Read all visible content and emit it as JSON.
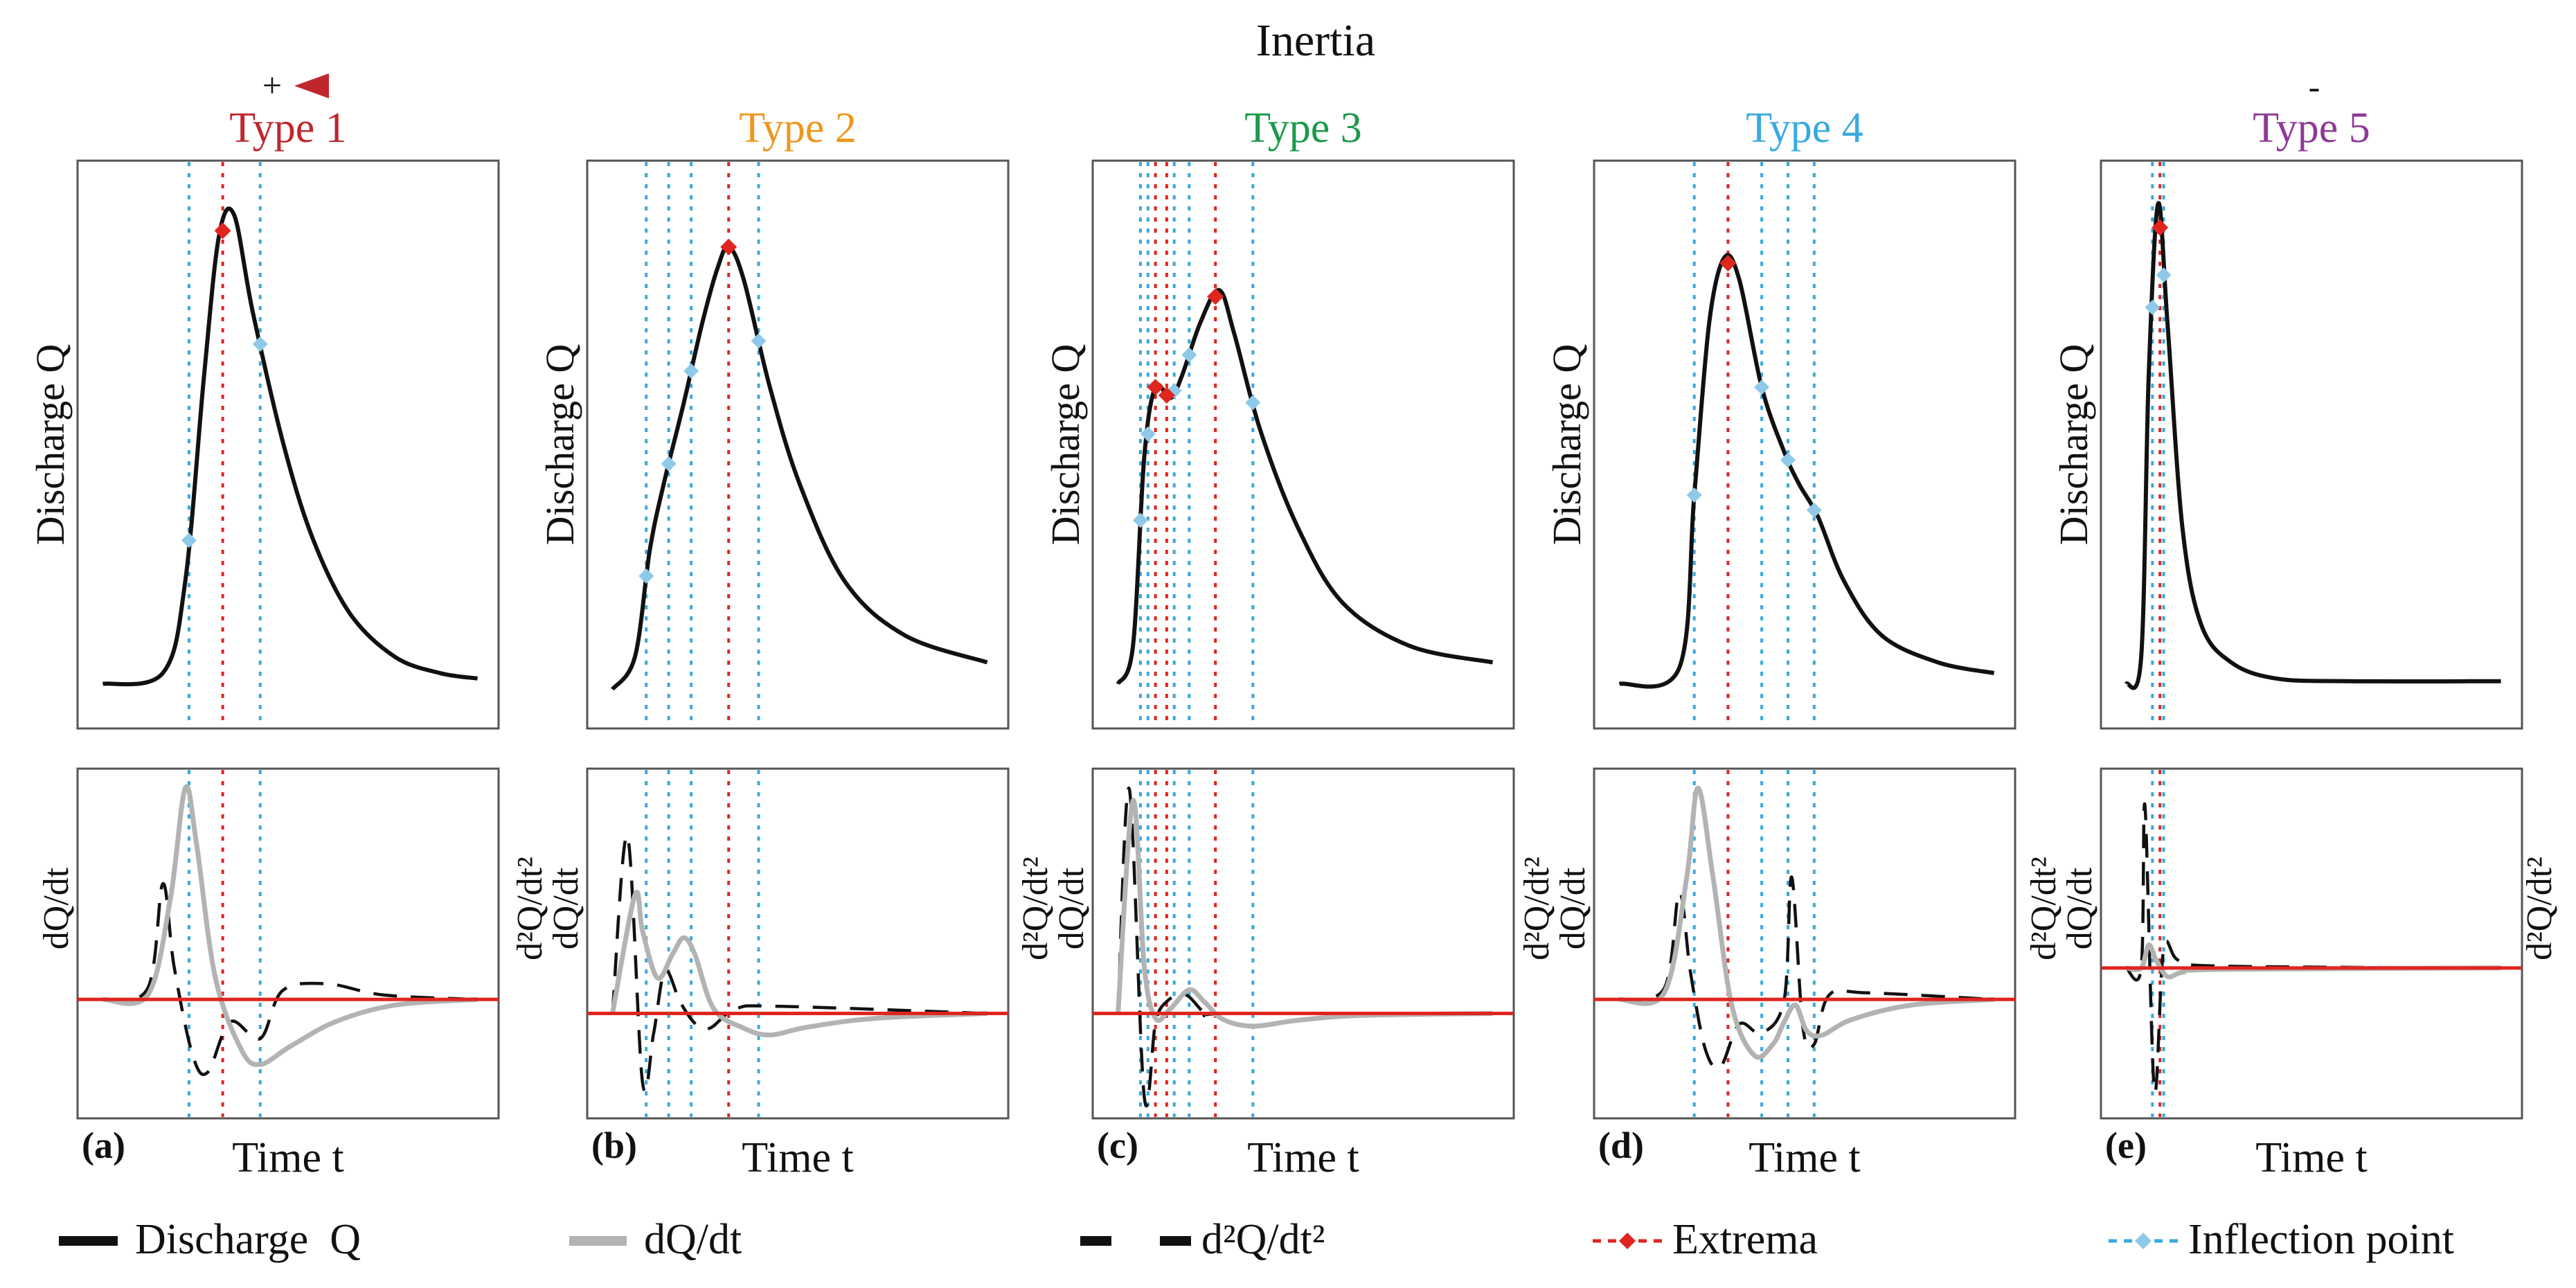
{
  "header": {
    "title": "Inertia",
    "plus_label": "+",
    "minus_label": "-"
  },
  "chart_data": {
    "type": "line",
    "x_label": "Time t",
    "legend": [
      {
        "name": "Discharge  Q",
        "style": "solid-black"
      },
      {
        "name": "dQ/dt",
        "style": "solid-gray"
      },
      {
        "name": "d²Q/dt²",
        "style": "dashed-black"
      },
      {
        "name": "Extrema",
        "style": "red-dotted-diamond"
      },
      {
        "name": "Inflection point",
        "style": "blue-dotted-diamond"
      }
    ],
    "colors": {
      "discharge": "#111111",
      "first_derivative": "#b3b3b3",
      "second_derivative": "#111111",
      "extrema": "#e0251f",
      "inflection": "#3aa9e0",
      "zero_line": "#e0251f",
      "frame": "#555555"
    },
    "panels": [
      {
        "label": "(a)",
        "title": "Type 1",
        "title_color": "#c0272d",
        "top_ylabel": "Discharge Q",
        "bottom_ylabel_left": "dQ/dt",
        "bottom_ylabel_right": "",
        "discharge_points": [
          [
            0,
            0.03
          ],
          [
            0.16,
            0.05
          ],
          [
            0.22,
            0.22
          ],
          [
            0.27,
            0.6
          ],
          [
            0.31,
            0.86
          ],
          [
            0.35,
            0.9
          ],
          [
            0.4,
            0.72
          ],
          [
            0.48,
            0.48
          ],
          [
            0.56,
            0.3
          ],
          [
            0.66,
            0.16
          ],
          [
            0.78,
            0.08
          ],
          [
            0.9,
            0.05
          ],
          [
            1,
            0.04
          ]
        ],
        "dqdt_points": [
          [
            0,
            0.0
          ],
          [
            0.12,
            0.02
          ],
          [
            0.18,
            0.45
          ],
          [
            0.22,
            0.95
          ],
          [
            0.25,
            0.7
          ],
          [
            0.3,
            0.1
          ],
          [
            0.37,
            -0.45
          ],
          [
            0.42,
            -0.58
          ],
          [
            0.5,
            -0.42
          ],
          [
            0.62,
            -0.2
          ],
          [
            0.78,
            -0.05
          ],
          [
            1,
            0
          ]
        ],
        "d2_points": [
          [
            0,
            0
          ],
          [
            0.12,
            0.05
          ],
          [
            0.16,
            0.52
          ],
          [
            0.19,
            0.15
          ],
          [
            0.24,
            -0.5
          ],
          [
            0.28,
            -0.65
          ],
          [
            0.34,
            -0.2
          ],
          [
            0.42,
            -0.35
          ],
          [
            0.48,
            0.04
          ],
          [
            0.6,
            0.07
          ],
          [
            0.75,
            0.02
          ],
          [
            1,
            0
          ]
        ],
        "extrema_x": [
          0.32
        ],
        "inflection_x": [
          0.23,
          0.42
        ],
        "bottom_zero_frac": 0.66
      },
      {
        "label": "(b)",
        "title": "Type 2",
        "title_color": "#f0961e",
        "top_ylabel": "Discharge Q",
        "bottom_ylabel_left": "d²Q/dt²",
        "bottom_ylabel_right": "",
        "discharge_points": [
          [
            0,
            0.02
          ],
          [
            0.06,
            0.08
          ],
          [
            0.1,
            0.28
          ],
          [
            0.14,
            0.41
          ],
          [
            0.19,
            0.55
          ],
          [
            0.24,
            0.7
          ],
          [
            0.28,
            0.8
          ],
          [
            0.31,
            0.84
          ],
          [
            0.35,
            0.78
          ],
          [
            0.42,
            0.58
          ],
          [
            0.5,
            0.4
          ],
          [
            0.62,
            0.22
          ],
          [
            0.78,
            0.12
          ],
          [
            1,
            0.07
          ]
        ],
        "dqdt_points": [
          [
            0,
            0.0
          ],
          [
            0.06,
            0.5
          ],
          [
            0.08,
            0.35
          ],
          [
            0.12,
            0.15
          ],
          [
            0.16,
            0.25
          ],
          [
            0.19,
            0.32
          ],
          [
            0.22,
            0.25
          ],
          [
            0.27,
            0.02
          ],
          [
            0.35,
            -0.15
          ],
          [
            0.42,
            -0.22
          ],
          [
            0.52,
            -0.14
          ],
          [
            0.7,
            -0.05
          ],
          [
            1,
            0
          ]
        ],
        "d2_points": [
          [
            0,
            0
          ],
          [
            0.04,
            0.75
          ],
          [
            0.08,
            -0.7
          ],
          [
            0.11,
            -0.2
          ],
          [
            0.14,
            0.18
          ],
          [
            0.18,
            0.05
          ],
          [
            0.22,
            -0.1
          ],
          [
            0.26,
            -0.15
          ],
          [
            0.33,
            0.02
          ],
          [
            0.45,
            0.03
          ],
          [
            1,
            0
          ]
        ],
        "extrema_x": [
          0.31
        ],
        "inflection_x": [
          0.09,
          0.15,
          0.21,
          0.39
        ],
        "bottom_zero_frac": 0.7
      },
      {
        "label": "(c)",
        "title": "Type 3",
        "title_color": "#1a9a49",
        "top_ylabel": "Discharge Q",
        "bottom_ylabel_left": "d²Q/dt²",
        "bottom_ylabel_right": "",
        "discharge_points": [
          [
            0,
            0.03
          ],
          [
            0.04,
            0.1
          ],
          [
            0.07,
            0.45
          ],
          [
            0.1,
            0.58
          ],
          [
            0.14,
            0.56
          ],
          [
            0.17,
            0.6
          ],
          [
            0.22,
            0.7
          ],
          [
            0.27,
            0.76
          ],
          [
            0.31,
            0.68
          ],
          [
            0.38,
            0.5
          ],
          [
            0.48,
            0.32
          ],
          [
            0.6,
            0.18
          ],
          [
            0.78,
            0.1
          ],
          [
            1,
            0.07
          ]
        ],
        "dqdt_points": [
          [
            0,
            0.0
          ],
          [
            0.04,
            0.9
          ],
          [
            0.07,
            0.2
          ],
          [
            0.1,
            -0.05
          ],
          [
            0.14,
            0.02
          ],
          [
            0.19,
            0.1
          ],
          [
            0.23,
            0.05
          ],
          [
            0.28,
            -0.06
          ],
          [
            0.36,
            -0.13
          ],
          [
            0.48,
            -0.07
          ],
          [
            0.65,
            -0.02
          ],
          [
            1,
            0
          ]
        ],
        "d2_points": [
          [
            0,
            0
          ],
          [
            0.03,
            0.95
          ],
          [
            0.07,
            -0.85
          ],
          [
            0.1,
            -0.1
          ],
          [
            0.13,
            0.05
          ],
          [
            0.18,
            0.08
          ],
          [
            0.24,
            -0.02
          ],
          [
            0.3,
            0.0
          ],
          [
            1,
            0
          ]
        ],
        "extrema_x": [
          0.1,
          0.13,
          0.26
        ],
        "inflection_x": [
          0.06,
          0.08,
          0.15,
          0.19,
          0.36
        ],
        "bottom_zero_frac": 0.7
      },
      {
        "label": "(d)",
        "title": "Type 4",
        "title_color": "#3aa9e0",
        "top_ylabel": "Discharge Q",
        "bottom_ylabel_left": "d²Q/dt²",
        "bottom_ylabel_right": "",
        "discharge_points": [
          [
            0,
            0.03
          ],
          [
            0.16,
            0.06
          ],
          [
            0.2,
            0.38
          ],
          [
            0.24,
            0.7
          ],
          [
            0.28,
            0.82
          ],
          [
            0.32,
            0.78
          ],
          [
            0.38,
            0.58
          ],
          [
            0.44,
            0.46
          ],
          [
            0.48,
            0.4
          ],
          [
            0.53,
            0.34
          ],
          [
            0.6,
            0.22
          ],
          [
            0.7,
            0.12
          ],
          [
            0.85,
            0.07
          ],
          [
            1,
            0.05
          ]
        ],
        "dqdt_points": [
          [
            0,
            0.0
          ],
          [
            0.12,
            0.03
          ],
          [
            0.18,
            0.55
          ],
          [
            0.21,
            0.95
          ],
          [
            0.25,
            0.55
          ],
          [
            0.3,
            -0.05
          ],
          [
            0.36,
            -0.5
          ],
          [
            0.41,
            -0.4
          ],
          [
            0.44,
            -0.2
          ],
          [
            0.47,
            -0.05
          ],
          [
            0.5,
            -0.28
          ],
          [
            0.54,
            -0.32
          ],
          [
            0.62,
            -0.18
          ],
          [
            0.78,
            -0.05
          ],
          [
            1,
            0
          ]
        ],
        "d2_points": [
          [
            0,
            0
          ],
          [
            0.12,
            0.05
          ],
          [
            0.16,
            0.48
          ],
          [
            0.19,
            0.12
          ],
          [
            0.23,
            -0.45
          ],
          [
            0.27,
            -0.6
          ],
          [
            0.32,
            -0.22
          ],
          [
            0.38,
            -0.3
          ],
          [
            0.44,
            0.0
          ],
          [
            0.46,
            0.55
          ],
          [
            0.49,
            -0.25
          ],
          [
            0.52,
            -0.4
          ],
          [
            0.56,
            0.02
          ],
          [
            0.66,
            0.03
          ],
          [
            1,
            0
          ]
        ],
        "extrema_x": [
          0.29
        ],
        "inflection_x": [
          0.2,
          0.38,
          0.45,
          0.52
        ],
        "bottom_zero_frac": 0.66
      },
      {
        "label": "(e)",
        "title": "Type 5",
        "title_color": "#8e3a96",
        "top_ylabel": "Discharge Q",
        "bottom_ylabel_left": "d²Q/dt²",
        "bottom_ylabel_right": "d²Q/dt²",
        "discharge_points": [
          [
            0,
            0.03
          ],
          [
            0.04,
            0.08
          ],
          [
            0.06,
            0.6
          ],
          [
            0.085,
            0.92
          ],
          [
            0.11,
            0.7
          ],
          [
            0.15,
            0.32
          ],
          [
            0.2,
            0.14
          ],
          [
            0.28,
            0.07
          ],
          [
            0.4,
            0.04
          ],
          [
            0.6,
            0.035
          ],
          [
            1,
            0.035
          ]
        ],
        "dqdt_points": [
          [
            0,
            0.0
          ],
          [
            0.04,
            0.0
          ],
          [
            0.06,
            0.12
          ],
          [
            0.08,
            0.04
          ],
          [
            0.11,
            -0.06
          ],
          [
            0.15,
            -0.03
          ],
          [
            0.25,
            -0.01
          ],
          [
            1,
            0
          ]
        ],
        "d2_points": [
          [
            0,
            0
          ],
          [
            0.04,
            0.0
          ],
          [
            0.05,
            0.85
          ],
          [
            0.075,
            -0.85
          ],
          [
            0.1,
            0.1
          ],
          [
            0.14,
            0.04
          ],
          [
            0.25,
            0.01
          ],
          [
            1,
            0
          ]
        ],
        "extrema_x": [
          0.09
        ],
        "inflection_x": [
          0.07,
          0.1
        ],
        "bottom_zero_frac": 0.57
      }
    ]
  }
}
